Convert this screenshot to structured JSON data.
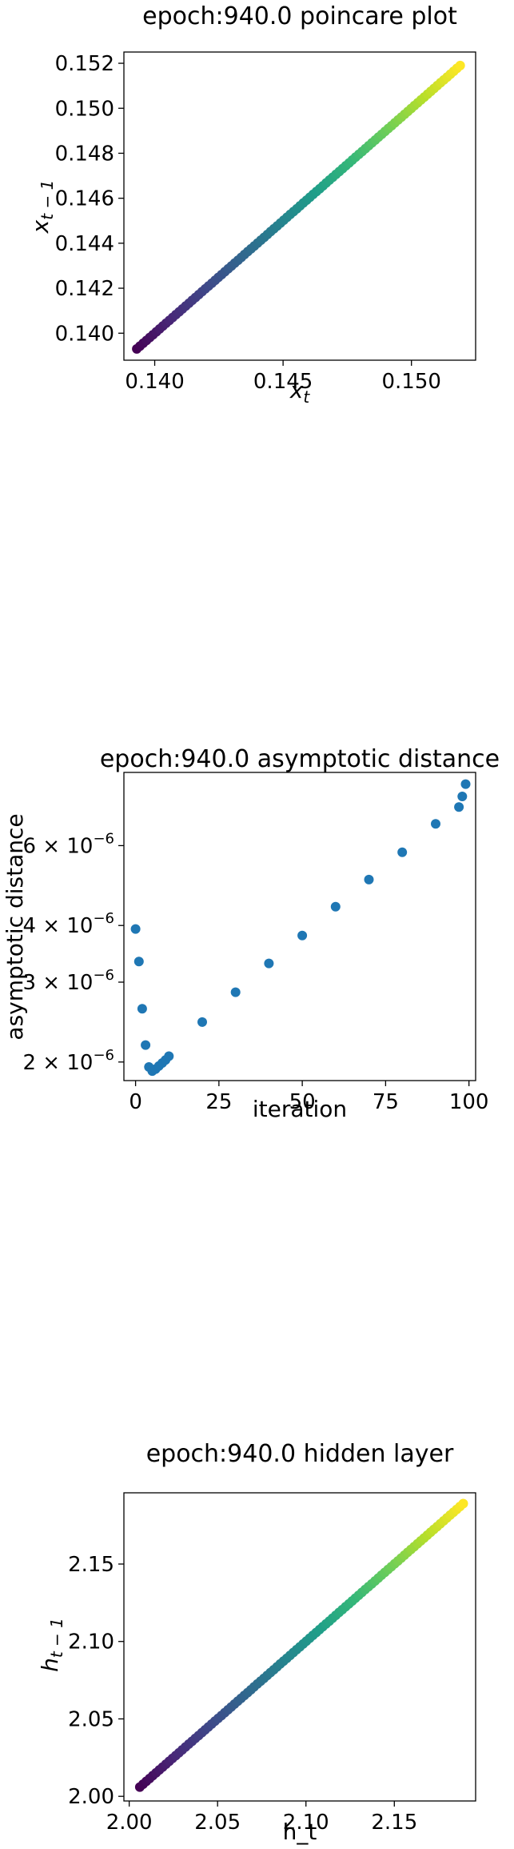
{
  "chart_data": [
    {
      "type": "scatter",
      "title": "epoch:940.0 poincare plot",
      "xlabel": "x_t",
      "ylabel": "x_{t-1}",
      "xlim": [
        0.1388,
        0.1525
      ],
      "ylim": [
        0.1388,
        0.1525
      ],
      "xscale": "linear",
      "yscale": "linear",
      "xticks": [
        0.14,
        0.145,
        0.15
      ],
      "xtick_labels": [
        "0.140",
        "0.145",
        "0.150"
      ],
      "yticks": [
        0.14,
        0.142,
        0.144,
        0.146,
        0.148,
        0.15,
        0.152
      ],
      "ytick_labels": [
        "0.140",
        "0.142",
        "0.144",
        "0.146",
        "0.148",
        "0.150",
        "0.152"
      ],
      "colormap": "viridis",
      "grid": false,
      "series": [
        {
          "n_points": 100,
          "x_start": 0.1393,
          "x_end": 0.1519,
          "y_start": 0.1393,
          "y_end": 0.1519,
          "note_shape": "points on the line y = x, colored from dark purple to yellow"
        }
      ]
    },
    {
      "type": "scatter",
      "title": "epoch:940.0 asymptotic distance",
      "xlabel": "iteration",
      "ylabel": "asymptotic distance",
      "xlim": [
        -3.5,
        102
      ],
      "ylim": [
        1.82e-06,
        8.7e-06
      ],
      "xscale": "linear",
      "yscale": "log",
      "xticks": [
        0,
        25,
        50,
        75,
        100
      ],
      "xtick_labels": [
        "0",
        "25",
        "50",
        "75",
        "100"
      ],
      "yticks": [
        2e-06,
        3e-06,
        4e-06,
        6e-06
      ],
      "ytick_labels": [
        "2 × 10⁻⁶",
        "3 × 10⁻⁶",
        "4 × 10⁻⁶",
        "6 × 10⁻⁶"
      ],
      "color": "#1f77b4",
      "grid": false,
      "series": [
        {
          "x": [
            0,
            1,
            2,
            3,
            4,
            5,
            6,
            7,
            8,
            9,
            10,
            20,
            30,
            40,
            50,
            60,
            70,
            80,
            90,
            97,
            98,
            99
          ],
          "y": [
            3.93e-06,
            3.33e-06,
            2.62e-06,
            2.18e-06,
            1.95e-06,
            1.91e-06,
            1.93e-06,
            1.96e-06,
            1.99e-06,
            2.02e-06,
            2.06e-06,
            2.45e-06,
            2.85e-06,
            3.3e-06,
            3.8e-06,
            4.4e-06,
            5.05e-06,
            5.8e-06,
            6.7e-06,
            7.3e-06,
            7.7e-06,
            8.2e-06
          ]
        }
      ]
    },
    {
      "type": "scatter",
      "title": "epoch:940.0 hidden layer",
      "xlabel": "h_t",
      "ylabel": "h_{t-1}",
      "xlim": [
        1.997,
        2.196
      ],
      "ylim": [
        1.997,
        2.196
      ],
      "xscale": "linear",
      "yscale": "linear",
      "xticks": [
        2.0,
        2.05,
        2.1,
        2.15
      ],
      "xtick_labels": [
        "2.00",
        "2.05",
        "2.10",
        "2.15"
      ],
      "yticks": [
        2.0,
        2.05,
        2.1,
        2.15
      ],
      "ytick_labels": [
        "2.00",
        "2.05",
        "2.10",
        "2.15"
      ],
      "colormap": "viridis",
      "grid": false,
      "series": [
        {
          "n_points": 100,
          "x_start": 2.006,
          "x_end": 2.189,
          "y_start": 2.006,
          "y_end": 2.189,
          "note_shape": "points on the line y = x, colored from dark purple to yellow"
        }
      ]
    }
  ]
}
